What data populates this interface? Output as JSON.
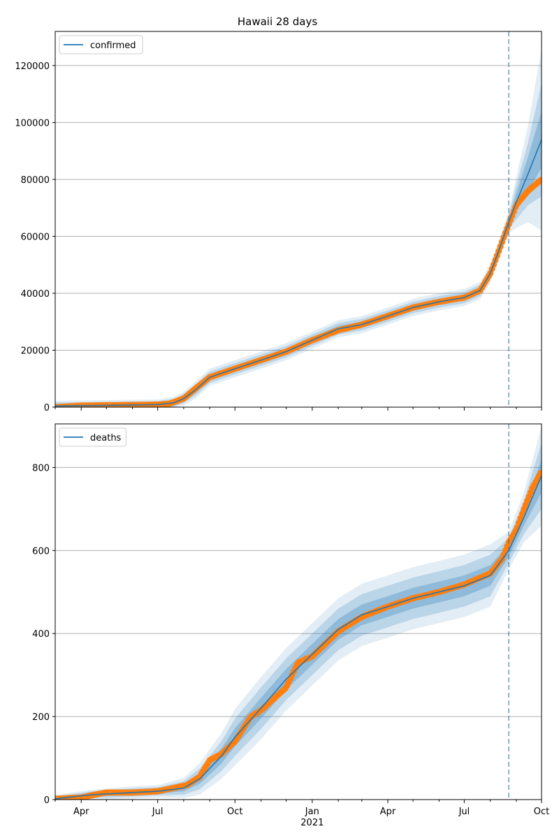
{
  "chart_data": [
    {
      "type": "line",
      "title": "Hawaii 28 days",
      "legend": {
        "entries": [
          "confirmed"
        ],
        "placement": "top-left"
      },
      "grid": "y",
      "ylim": [
        0,
        132000
      ],
      "yticks": [
        0,
        20000,
        40000,
        60000,
        80000,
        100000,
        120000
      ],
      "xlim": [
        "2020-03-01",
        "2021-10-01"
      ],
      "forecast_start": "2021-08-23",
      "series": [
        {
          "name": "confirmed",
          "role": "model",
          "color": "#1f77b4",
          "x": [
            "2020-03-01",
            "2020-05-01",
            "2020-07-01",
            "2020-07-20",
            "2020-08-01",
            "2020-08-15",
            "2020-09-01",
            "2020-10-01",
            "2020-11-01",
            "2020-12-01",
            "2021-01-01",
            "2021-02-01",
            "2021-03-01",
            "2021-04-01",
            "2021-05-01",
            "2021-06-01",
            "2021-07-01",
            "2021-07-20",
            "2021-08-01",
            "2021-08-10",
            "2021-08-23",
            "2021-09-01",
            "2021-09-15",
            "2021-10-01"
          ],
          "y": [
            400,
            650,
            900,
            1500,
            3000,
            6000,
            10500,
            13500,
            16500,
            19500,
            23500,
            27500,
            29000,
            32000,
            35000,
            37000,
            38500,
            41000,
            47000,
            54000,
            65000,
            72000,
            82000,
            94000
          ],
          "band_half_widths": [
            [
              600,
              1200,
              1800
            ],
            [
              600,
              1200,
              1800
            ],
            [
              600,
              1200,
              1800
            ],
            [
              700,
              1400,
              2100
            ],
            [
              800,
              1600,
              2400
            ],
            [
              1000,
              2000,
              3000
            ],
            [
              1000,
              2000,
              3000
            ],
            [
              1000,
              2000,
              3000
            ],
            [
              1000,
              2000,
              3000
            ],
            [
              1000,
              2000,
              3000
            ],
            [
              1000,
              2000,
              3000
            ],
            [
              1000,
              2000,
              3000
            ],
            [
              1000,
              2000,
              3000
            ],
            [
              1000,
              2000,
              3000
            ],
            [
              1000,
              2000,
              3000
            ],
            [
              1000,
              2000,
              3000
            ],
            [
              1000,
              2000,
              3000
            ],
            [
              1000,
              2000,
              3000
            ],
            [
              1100,
              2200,
              3300
            ],
            [
              1200,
              2400,
              3600
            ],
            [
              1300,
              2600,
              3900
            ],
            [
              3000,
              6000,
              9000
            ],
            [
              6000,
              11000,
              17000
            ],
            [
              10000,
              20000,
              32000
            ]
          ]
        },
        {
          "name": "confirmed observed",
          "role": "observed",
          "color": "#ff7f0e",
          "x": [
            "2020-03-01",
            "2020-04-01",
            "2020-05-01",
            "2020-06-01",
            "2020-07-01",
            "2020-07-15",
            "2020-08-01",
            "2020-08-15",
            "2020-09-01",
            "2020-10-01",
            "2020-11-01",
            "2020-12-01",
            "2021-01-01",
            "2021-02-01",
            "2021-03-01",
            "2021-04-01",
            "2021-05-01",
            "2021-06-01",
            "2021-07-01",
            "2021-07-20",
            "2021-08-01",
            "2021-08-10",
            "2021-08-20",
            "2021-09-01",
            "2021-09-15",
            "2021-10-01"
          ],
          "y": [
            0,
            500,
            650,
            750,
            900,
            1200,
            3000,
            6500,
            10500,
            13500,
            16500,
            19500,
            23500,
            27000,
            29000,
            32000,
            35000,
            37000,
            38500,
            41000,
            47000,
            54000,
            62000,
            71000,
            76000,
            80000
          ]
        }
      ]
    },
    {
      "type": "line",
      "title": "",
      "legend": {
        "entries": [
          "deaths"
        ],
        "placement": "top-left"
      },
      "grid": "y",
      "ylim": [
        0,
        905
      ],
      "yticks": [
        0,
        200,
        400,
        600,
        800
      ],
      "xlim": [
        "2020-03-01",
        "2021-10-01"
      ],
      "xtick_labels": [
        "Apr",
        "Jul",
        "Oct",
        "Jan",
        "Apr",
        "Jul",
        "Oct"
      ],
      "xtick_dates": [
        "2020-04-01",
        "2020-07-01",
        "2020-10-01",
        "2021-01-01",
        "2021-04-01",
        "2021-07-01",
        "2021-10-01"
      ],
      "year_label": "2021",
      "forecast_start": "2021-08-23",
      "series": [
        {
          "name": "deaths",
          "role": "model",
          "color": "#1f77b4",
          "x": [
            "2020-03-01",
            "2020-04-15",
            "2020-06-01",
            "2020-07-01",
            "2020-08-01",
            "2020-08-20",
            "2020-09-15",
            "2020-10-01",
            "2020-11-01",
            "2020-12-01",
            "2021-01-01",
            "2021-02-01",
            "2021-03-01",
            "2021-04-01",
            "2021-05-01",
            "2021-06-01",
            "2021-07-01",
            "2021-08-01",
            "2021-08-23",
            "2021-09-10",
            "2021-10-01"
          ],
          "y": [
            2,
            12,
            17,
            20,
            28,
            50,
            105,
            150,
            220,
            290,
            350,
            410,
            445,
            465,
            485,
            500,
            515,
            540,
            600,
            680,
            780
          ],
          "band_half_widths": [
            [
              3,
              6,
              9
            ],
            [
              4,
              8,
              12
            ],
            [
              5,
              10,
              15
            ],
            [
              5,
              10,
              15
            ],
            [
              8,
              16,
              24
            ],
            [
              12,
              25,
              38
            ],
            [
              18,
              36,
              55
            ],
            [
              22,
              45,
              68
            ],
            [
              25,
              50,
              75
            ],
            [
              25,
              50,
              75
            ],
            [
              25,
              50,
              75
            ],
            [
              25,
              50,
              75
            ],
            [
              25,
              50,
              75
            ],
            [
              25,
              50,
              75
            ],
            [
              25,
              50,
              75
            ],
            [
              25,
              50,
              75
            ],
            [
              25,
              50,
              75
            ],
            [
              25,
              50,
              75
            ],
            [
              15,
              30,
              45
            ],
            [
              20,
              40,
              60
            ],
            [
              40,
              80,
              120
            ]
          ]
        },
        {
          "name": "deaths observed",
          "role": "observed",
          "color": "#ff7f0e",
          "x": [
            "2020-03-01",
            "2020-04-01",
            "2020-04-20",
            "2020-05-01",
            "2020-06-01",
            "2020-07-01",
            "2020-07-20",
            "2020-08-05",
            "2020-08-20",
            "2020-09-01",
            "2020-09-15",
            "2020-10-01",
            "2020-10-20",
            "2020-11-01",
            "2020-12-01",
            "2020-12-15",
            "2021-01-01",
            "2021-02-01",
            "2021-03-01",
            "2021-04-01",
            "2021-05-01",
            "2021-06-01",
            "2021-07-01",
            "2021-08-01",
            "2021-08-15",
            "2021-08-23",
            "2021-09-01",
            "2021-09-10",
            "2021-09-20",
            "2021-10-01"
          ],
          "y": [
            2,
            5,
            13,
            17,
            17,
            20,
            28,
            35,
            55,
            95,
            110,
            140,
            200,
            215,
            270,
            330,
            345,
            405,
            440,
            465,
            485,
            500,
            518,
            545,
            580,
            620,
            650,
            700,
            750,
            790
          ]
        }
      ]
    }
  ]
}
